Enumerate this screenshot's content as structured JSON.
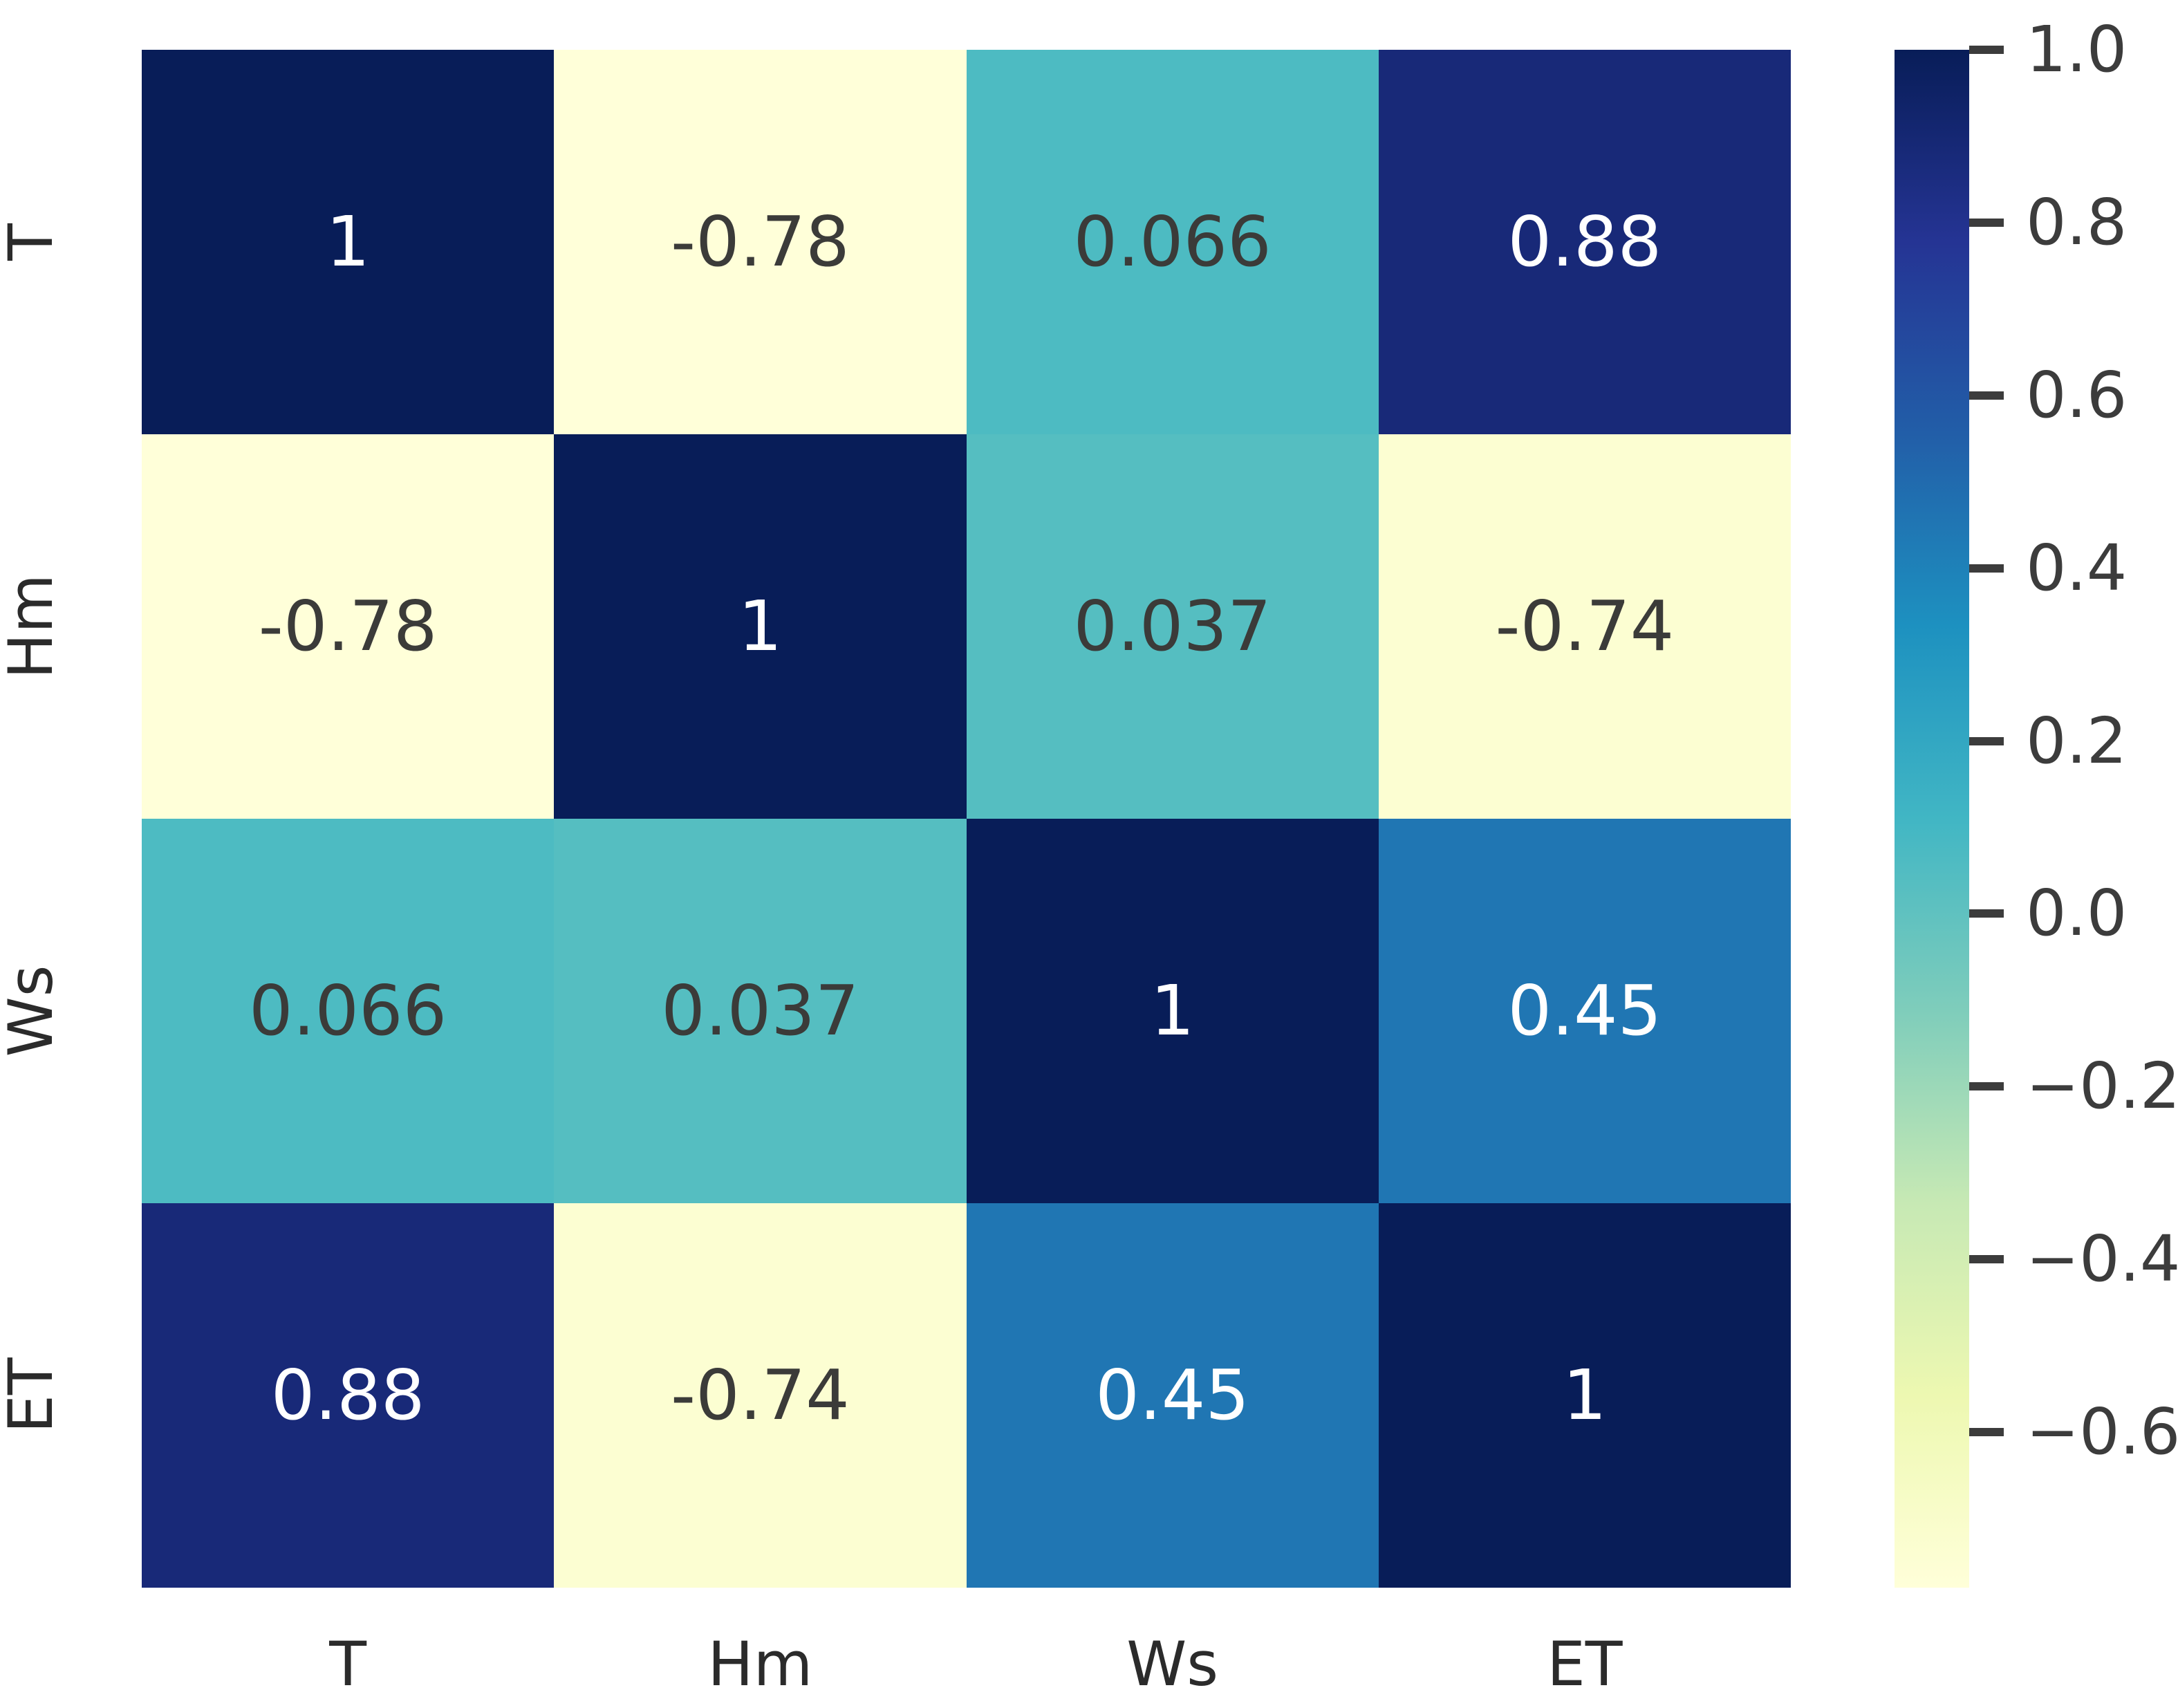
{
  "chart_data": {
    "type": "heatmap",
    "title": "",
    "categories": [
      "T",
      "Hm",
      "Ws",
      "ET"
    ],
    "x_tick_labels": [
      "T",
      "Hm",
      "Ws",
      "ET"
    ],
    "y_tick_labels": [
      "T",
      "Hm",
      "Ws",
      "ET"
    ],
    "matrix": [
      [
        1,
        -0.78,
        0.066,
        0.88
      ],
      [
        -0.78,
        1,
        0.037,
        -0.74
      ],
      [
        0.066,
        0.037,
        1,
        0.45
      ],
      [
        0.88,
        -0.74,
        0.45,
        1
      ]
    ],
    "annotations": [
      [
        "1",
        "-0.78",
        "0.066",
        "0.88"
      ],
      [
        "-0.78",
        "1",
        "0.037",
        "-0.74"
      ],
      [
        "0.066",
        "0.037",
        "1",
        "0.45"
      ],
      [
        "0.88",
        "-0.74",
        "0.45",
        "1"
      ]
    ],
    "vmin": -0.78,
    "vmax": 1.0,
    "colormap": {
      "name": "YlGnBu",
      "stops": [
        "#ffffd9",
        "#edf8b1",
        "#c7e9b4",
        "#7fcdbb",
        "#41b6c4",
        "#1d91c0",
        "#225ea8",
        "#253494",
        "#081d58"
      ]
    },
    "colorbar": {
      "position": "right",
      "tick_labels": [
        "1.0",
        "0.8",
        "0.6",
        "0.4",
        "0.2",
        "0.0",
        "−0.2",
        "−0.4",
        "−0.6"
      ],
      "tick_values": [
        1.0,
        0.8,
        0.6,
        0.4,
        0.2,
        0.0,
        -0.2,
        -0.4,
        -0.6
      ]
    },
    "grid": false,
    "legend_position": "none"
  },
  "colors": {
    "background": "#ffffff",
    "annotation_dark": "#3b3b39",
    "annotation_light": "#ffffff",
    "axis_label": "#2b2b2b",
    "colorbar_tick": "#3c3c3c",
    "colorbar_tick_label": "#3c3c3c"
  }
}
